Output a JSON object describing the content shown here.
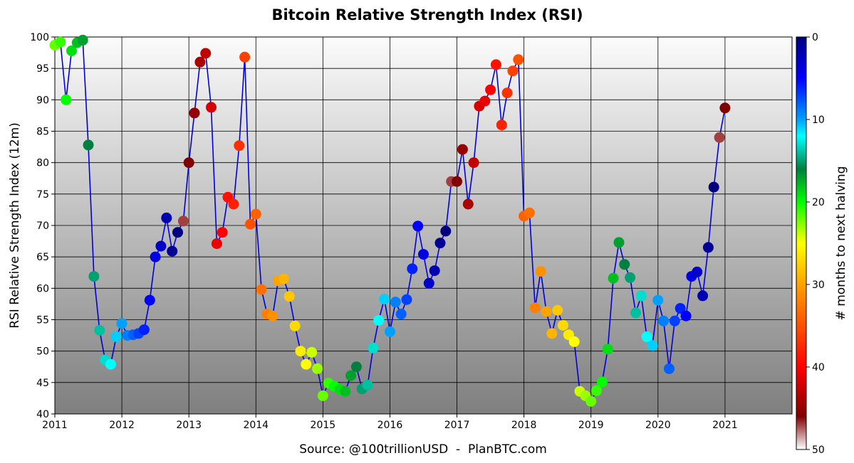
{
  "chart_data": {
    "type": "scatter",
    "title": "Bitcoin Relative Strength Index (RSI)",
    "ylabel": "RSI Relative Strength Index (12m)",
    "xlabel": "",
    "source": "Source: @100trillionUSD  -  PlanBTC.com",
    "xlim": [
      2011.0,
      2022.0
    ],
    "ylim": [
      40,
      100
    ],
    "grid": true,
    "x_ticks": [
      "2011",
      "2012",
      "2013",
      "2014",
      "2015",
      "2016",
      "2017",
      "2018",
      "2019",
      "2020",
      "2021"
    ],
    "y_ticks": [
      "40",
      "45",
      "50",
      "55",
      "60",
      "65",
      "70",
      "75",
      "80",
      "85",
      "90",
      "95",
      "100"
    ],
    "colorbar": {
      "label": "# months to next halving",
      "range": [
        0,
        50
      ],
      "ticks": [
        "0",
        "10",
        "20",
        "30",
        "40",
        "50"
      ],
      "colormap": "jet (0 = dark blue, 50 = white)"
    },
    "line_color": "#0000dd",
    "series": [
      {
        "x": [
          2011.0,
          2011.083,
          2011.167,
          2011.25,
          2011.333,
          2011.417,
          2011.5,
          2011.583,
          2011.667,
          2011.75,
          2011.833,
          2011.917,
          2012.0,
          2012.083,
          2012.167,
          2012.25,
          2012.333,
          2012.417,
          2012.5,
          2012.583,
          2012.667,
          2012.75,
          2012.833,
          2012.917,
          2013.0,
          2013.083,
          2013.167,
          2013.25,
          2013.333,
          2013.417,
          2013.5,
          2013.583,
          2013.667,
          2013.75,
          2013.833,
          2013.917,
          2014.0,
          2014.083,
          2014.167,
          2014.25,
          2014.333,
          2014.417,
          2014.5,
          2014.583,
          2014.667,
          2014.75,
          2014.833,
          2014.917,
          2015.0,
          2015.083,
          2015.167,
          2015.25,
          2015.333,
          2015.417,
          2015.5,
          2015.583,
          2015.667,
          2015.75,
          2015.833,
          2015.917,
          2016.0,
          2016.083,
          2016.167,
          2016.25,
          2016.333,
          2016.417,
          2016.5,
          2016.583,
          2016.667,
          2016.75,
          2016.833,
          2016.917,
          2017.0,
          2017.083,
          2017.167,
          2017.25,
          2017.333,
          2017.417,
          2017.5,
          2017.583,
          2017.667,
          2017.75,
          2017.833,
          2017.917,
          2018.0,
          2018.083,
          2018.167,
          2018.25,
          2018.333,
          2018.417,
          2018.5,
          2018.583,
          2018.667,
          2018.75,
          2018.833,
          2018.917,
          2019.0,
          2019.083,
          2019.167,
          2019.25,
          2019.333,
          2019.417,
          2019.5,
          2019.583,
          2019.667,
          2019.75,
          2019.833,
          2019.917,
          2020.0,
          2020.083,
          2020.167,
          2020.25,
          2020.333,
          2020.417,
          2020.5,
          2020.583,
          2020.667,
          2020.75,
          2020.833,
          2020.917,
          2021.0
        ],
        "y": [
          98.7,
          99.2,
          90.0,
          97.8,
          99.1,
          99.5,
          82.8,
          61.9,
          53.3,
          48.6,
          47.9,
          52.3,
          54.4,
          52.5,
          52.6,
          52.8,
          53.4,
          58.1,
          65.0,
          66.7,
          71.2,
          65.9,
          68.9,
          70.7,
          80.0,
          87.9,
          96.0,
          97.4,
          88.8,
          67.1,
          68.9,
          74.5,
          73.4,
          82.7,
          96.8,
          70.2,
          71.8,
          59.8,
          55.9,
          55.6,
          61.2,
          61.5,
          58.7,
          54.0,
          50.0,
          47.9,
          49.8,
          47.2,
          42.9,
          44.9,
          44.4,
          43.9,
          43.6,
          46.1,
          47.5,
          44.0,
          44.6,
          50.5,
          54.9,
          58.3,
          53.1,
          57.8,
          55.9,
          58.2,
          63.1,
          69.9,
          65.4,
          60.8,
          62.8,
          67.2,
          69.1,
          77.0,
          77.0,
          82.1,
          73.4,
          80.0,
          89.0,
          89.8,
          91.6,
          95.6,
          86.0,
          91.1,
          94.6,
          96.4,
          71.5,
          72.0,
          56.9,
          62.7,
          56.3,
          52.8,
          56.5,
          54.1,
          52.6,
          51.5,
          43.6,
          42.9,
          42.0,
          43.7,
          45.1,
          50.3,
          61.6,
          67.3,
          63.8,
          61.7,
          56.1,
          58.8,
          52.3,
          50.9,
          58.1,
          54.8,
          47.2,
          54.8,
          56.8,
          55.6,
          61.9,
          62.6,
          58.8,
          66.5,
          76.1,
          84.0,
          88.7
        ],
        "months_to_next_halving": [
          22,
          21,
          20,
          19,
          18,
          17,
          16,
          15,
          14,
          13,
          12,
          11,
          10,
          9,
          8,
          7,
          6,
          5,
          4,
          3,
          2,
          1,
          0,
          47,
          46,
          45,
          44,
          43,
          42,
          41,
          40,
          39,
          38,
          37,
          36,
          35,
          34,
          33,
          32,
          31,
          30,
          29,
          28,
          27,
          26,
          25,
          24,
          23,
          22,
          21,
          20,
          19,
          18,
          17,
          16,
          15,
          14,
          13,
          12,
          11,
          10,
          9,
          8,
          7,
          6,
          5,
          4,
          3,
          2,
          1,
          0,
          47,
          46,
          45,
          44,
          43,
          42,
          41,
          40,
          39,
          38,
          37,
          36,
          35,
          34,
          33,
          32,
          31,
          30,
          29,
          28,
          27,
          26,
          25,
          24,
          23,
          22,
          21,
          20,
          19,
          18,
          17,
          16,
          15,
          14,
          13,
          12,
          11,
          10,
          9,
          8,
          7,
          6,
          5,
          4,
          3,
          2,
          1,
          0,
          47,
          46
        ]
      }
    ]
  }
}
